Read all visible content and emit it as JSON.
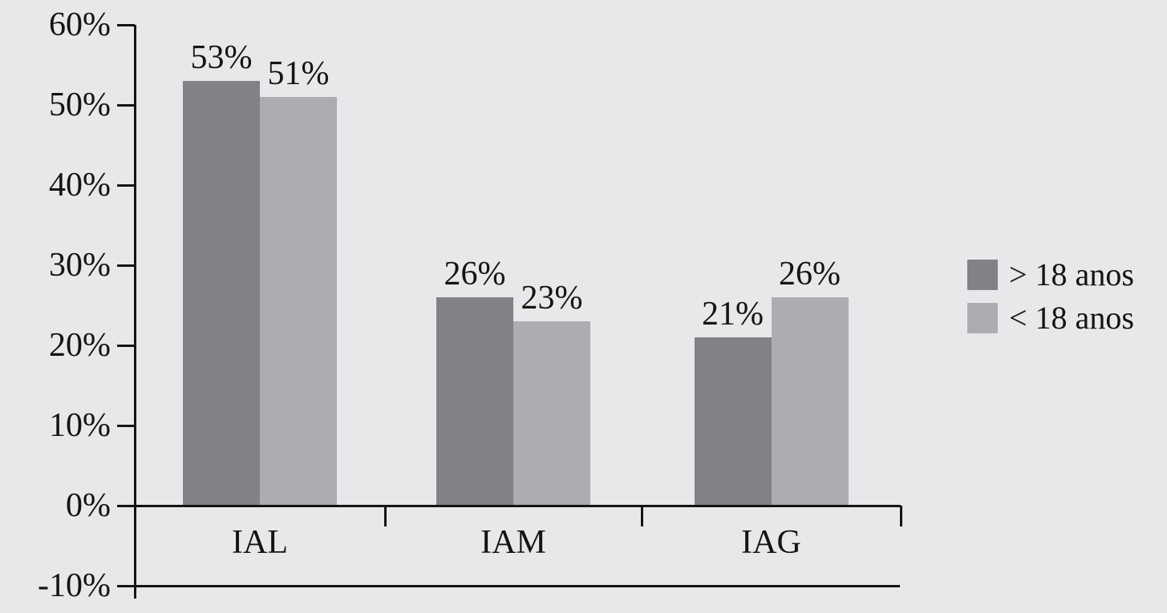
{
  "chart_data": {
    "type": "bar",
    "categories": [
      "IAL",
      "IAM",
      "IAG"
    ],
    "series": [
      {
        "name": "> 18 anos",
        "color": "#808287",
        "values": [
          53,
          26,
          21
        ]
      },
      {
        "name": "< 18 anos",
        "color": "#abadb2",
        "values": [
          51,
          23,
          26
        ]
      }
    ],
    "value_labels": [
      [
        "53%",
        "26%",
        "21%"
      ],
      [
        "51%",
        "23%",
        "26%"
      ]
    ],
    "y_tick_labels": [
      "60%",
      "50%",
      "40%",
      "30%",
      "20%",
      "10%",
      "0%",
      "-10%"
    ],
    "y_tick_values": [
      60,
      50,
      40,
      30,
      20,
      10,
      0,
      -10
    ],
    "ylim": [
      -10,
      60
    ],
    "title": "",
    "xlabel": "",
    "ylabel": "",
    "grid": false,
    "legend_position": "right",
    "colors": {
      "background": "#e8e8ea",
      "axis": "#141414",
      "text": "#141414"
    }
  }
}
